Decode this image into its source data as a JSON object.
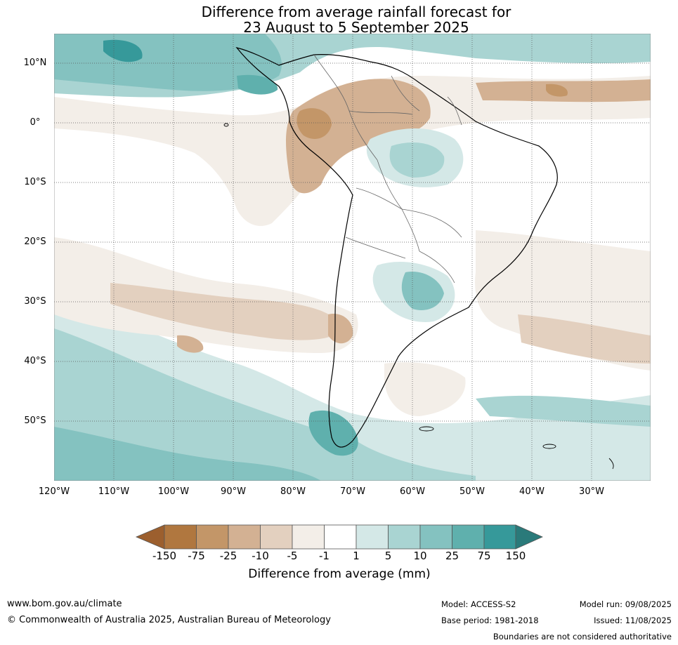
{
  "title": {
    "line1": "Difference from average rainfall forecast for",
    "line2": "23 August to 5 September 2025"
  },
  "map": {
    "lat_labels": [
      "10°N",
      "0°",
      "10°S",
      "20°S",
      "30°S",
      "40°S",
      "50°S"
    ],
    "lon_labels": [
      "120°W",
      "110°W",
      "100°W",
      "90°W",
      "80°W",
      "70°W",
      "60°W",
      "50°W",
      "40°W",
      "30°W"
    ]
  },
  "legend": {
    "label": "Difference from average (mm)",
    "ticks": [
      "-150",
      "-75",
      "-25",
      "-10",
      "-5",
      "-1",
      "1",
      "5",
      "10",
      "25",
      "75",
      "150"
    ],
    "colors": [
      "#9c5f2e",
      "#b0773f",
      "#c39668",
      "#d3b193",
      "#e3d0bf",
      "#f3eee8",
      "#ffffff",
      "#d4e8e7",
      "#a9d4d2",
      "#84c2c0",
      "#5fb0ad",
      "#36999a",
      "#2a7a7a"
    ]
  },
  "footer": {
    "website": "www.bom.gov.au/climate",
    "copyright": "© Commonwealth of Australia 2025, Australian Bureau of Meteorology",
    "model": "Model: ACCESS-S2",
    "model_run": "Model run: 09/08/2025",
    "base_period": "Base period: 1981-2018",
    "issued": "Issued: 11/08/2025",
    "disclaimer": "Boundaries are not considered authoritative"
  }
}
